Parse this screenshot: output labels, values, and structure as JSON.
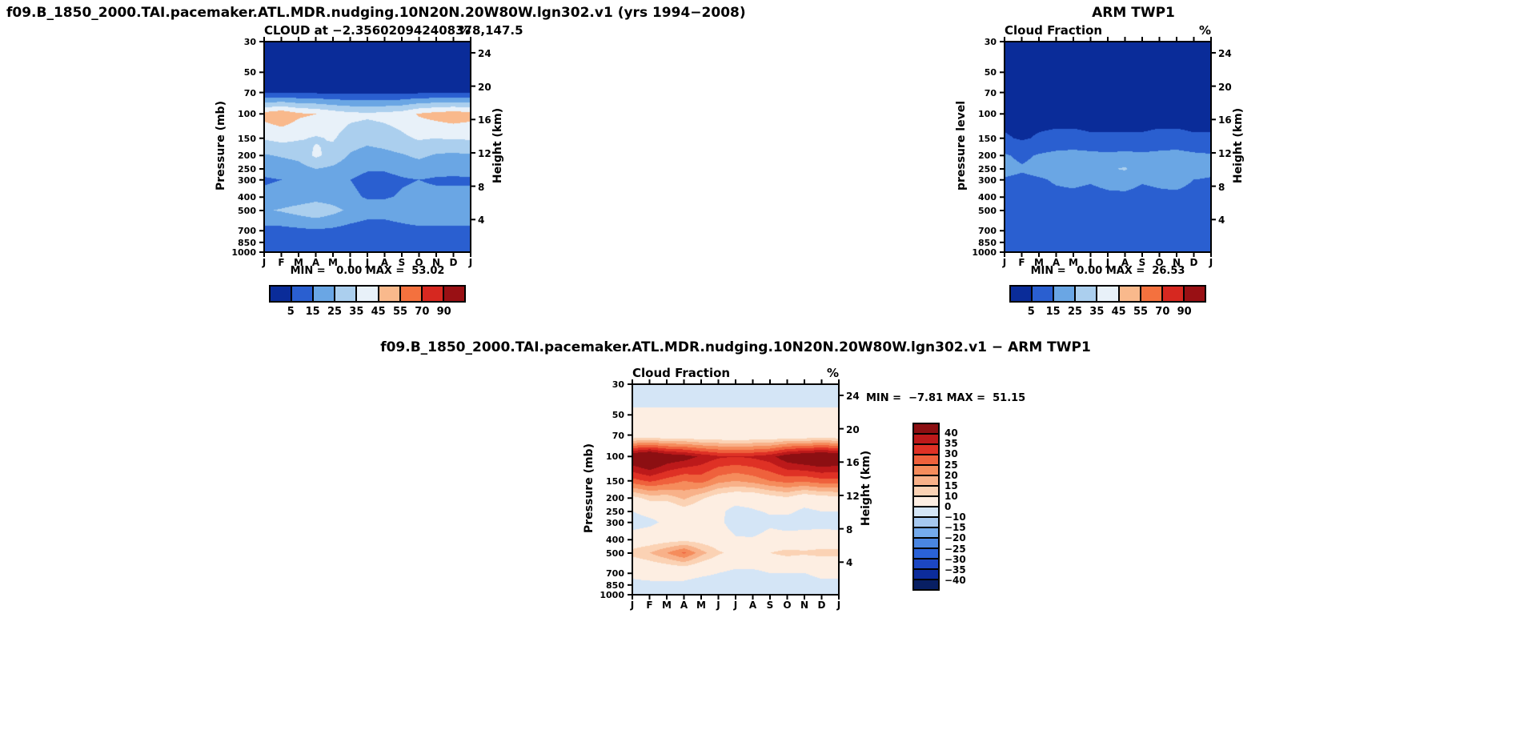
{
  "titles": {
    "model_case": "f09.B_1850_2000.TAI.pacemaker.ATL.MDR.nudging.10N20N.20W80W.lgn302.v1  (yrs 1994−2008)",
    "obs": "ARM TWP1",
    "diff": "f09.B_1850_2000.TAI.pacemaker.ATL.MDR.nudging.10N20N.20W80W.lgn302.v1 − ARM TWP1"
  },
  "axes": {
    "months": [
      "J",
      "F",
      "M",
      "A",
      "M",
      "J",
      "J",
      "A",
      "S",
      "O",
      "N",
      "D",
      "J"
    ],
    "pressure_ticks": [
      30,
      50,
      70,
      100,
      150,
      200,
      250,
      300,
      400,
      500,
      700,
      850,
      1000
    ],
    "height_ticks": [
      4,
      8,
      12,
      16,
      20,
      24
    ]
  },
  "palettes": {
    "cloud": {
      "levels": [
        5,
        15,
        25,
        35,
        45,
        55,
        70,
        90
      ],
      "colors": [
        "#0a2c99",
        "#2a5fd0",
        "#6aa6e4",
        "#abcfee",
        "#e8f1f9",
        "#f9b98c",
        "#f4713e",
        "#d62820",
        "#991014"
      ],
      "labels": [
        "5",
        "15",
        "25",
        "35",
        "45",
        "55",
        "70",
        "90"
      ]
    },
    "diff": {
      "levels": [
        -40,
        -35,
        -30,
        -25,
        -20,
        -15,
        -10,
        0,
        10,
        15,
        20,
        25,
        30,
        35,
        40
      ],
      "colors": [
        "#081f63",
        "#0c2c9c",
        "#1c47c2",
        "#2a62d8",
        "#4a86e2",
        "#74aaec",
        "#a6c8f0",
        "#d4e5f6",
        "#fdeee2",
        "#fbd2b4",
        "#f8b189",
        "#f58c5c",
        "#ef613c",
        "#df3125",
        "#bc191a",
        "#8c0f12"
      ],
      "labels": [
        "40",
        "35",
        "30",
        "25",
        "20",
        "15",
        "10",
        "0",
        "−10",
        "−15",
        "−20",
        "−25",
        "−30",
        "−35",
        "−40"
      ]
    }
  },
  "chart_data": [
    {
      "id": "model",
      "type": "heatmap",
      "title": "CLOUD at −2.356020942408378,147.5",
      "units": "%",
      "ylabel_left": "Pressure (mb)",
      "ylabel_right": "Height (km)",
      "minmax": "MIN =   0.00 MAX =  53.02",
      "min": 0.0,
      "max": 53.02,
      "palette": "cloud",
      "x": [
        "J",
        "F",
        "M",
        "A",
        "M",
        "J",
        "J",
        "A",
        "S",
        "O",
        "N",
        "D",
        "J"
      ],
      "y_mb": [
        30,
        50,
        70,
        100,
        150,
        200,
        250,
        300,
        400,
        500,
        700,
        850,
        1000
      ],
      "values": [
        [
          0.5,
          0.5,
          0.5,
          0.5,
          0.5,
          0.5,
          0.5,
          0.5,
          0.5,
          0.5,
          0.5,
          0.5,
          0.5
        ],
        [
          1,
          1,
          1,
          1,
          1,
          1,
          1,
          1,
          1,
          1,
          1,
          1,
          1
        ],
        [
          4,
          4,
          4,
          4,
          3,
          3,
          3,
          3,
          3,
          4,
          4,
          4,
          4
        ],
        [
          49,
          53,
          47,
          45,
          41,
          38,
          37,
          38,
          40,
          46,
          49,
          51,
          49
        ],
        [
          36,
          38,
          36,
          34,
          36,
          30,
          28,
          30,
          33,
          36,
          35,
          36,
          36
        ],
        [
          24,
          26,
          28,
          37,
          31,
          24,
          21,
          22,
          24,
          27,
          24,
          23,
          24
        ],
        [
          18,
          19,
          21,
          25,
          23,
          19,
          16,
          16,
          18,
          20,
          18,
          17,
          18
        ],
        [
          14,
          15,
          16,
          18,
          17,
          15,
          12,
          12,
          14,
          15,
          14,
          14,
          14
        ],
        [
          17,
          18,
          19,
          21,
          20,
          17,
          14,
          14,
          16,
          17,
          17,
          17,
          17
        ],
        [
          24,
          26,
          29,
          32,
          28,
          23,
          20,
          20,
          22,
          25,
          24,
          24,
          24
        ],
        [
          12,
          12,
          13,
          14,
          13,
          11,
          9,
          9,
          11,
          12,
          12,
          12,
          12
        ],
        [
          9,
          9,
          9,
          10,
          9,
          8,
          7,
          7,
          8,
          9,
          9,
          9,
          9
        ],
        [
          6,
          6,
          6,
          6,
          6,
          6,
          5,
          5,
          6,
          6,
          6,
          6,
          6
        ]
      ]
    },
    {
      "id": "obs",
      "type": "heatmap",
      "title": "Cloud Fraction",
      "units": "%",
      "ylabel_left": "pressure level",
      "ylabel_right": "Height (km)",
      "minmax": "MIN =   0.00 MAX =  26.53",
      "min": 0.0,
      "max": 26.53,
      "palette": "cloud",
      "x": [
        "J",
        "F",
        "M",
        "A",
        "M",
        "J",
        "J",
        "A",
        "S",
        "O",
        "N",
        "D",
        "J"
      ],
      "y_mb": [
        30,
        50,
        70,
        100,
        150,
        200,
        250,
        300,
        400,
        500,
        700,
        850,
        1000
      ],
      "values": [
        [
          0.3,
          0.3,
          0.3,
          0.3,
          0.3,
          0.3,
          0.3,
          0.3,
          0.3,
          0.3,
          0.3,
          0.3,
          0.3
        ],
        [
          0.3,
          0.3,
          0.3,
          0.3,
          0.3,
          0.3,
          0.3,
          0.3,
          0.3,
          0.3,
          0.3,
          0.3,
          0.3
        ],
        [
          0.5,
          0.5,
          0.5,
          0.5,
          0.5,
          0.5,
          0.5,
          0.5,
          0.5,
          0.5,
          0.5,
          0.5,
          0.5
        ],
        [
          2,
          2,
          2,
          2,
          2,
          2,
          2,
          2,
          2,
          2,
          2,
          2,
          2
        ],
        [
          6,
          4,
          6,
          7,
          7,
          6,
          6,
          6,
          6,
          7,
          7,
          6,
          6
        ],
        [
          16,
          13,
          16,
          18,
          19,
          18,
          17,
          18,
          17,
          18,
          19,
          17,
          16
        ],
        [
          18,
          16,
          18,
          20,
          22,
          20,
          24,
          26,
          20,
          21,
          23,
          20,
          18
        ],
        [
          14,
          13,
          14,
          16,
          17,
          16,
          18,
          19,
          16,
          17,
          18,
          15,
          14
        ],
        [
          12,
          11,
          12,
          13,
          13,
          12,
          13,
          13,
          12,
          13,
          13,
          12,
          12
        ],
        [
          12,
          11,
          12,
          13,
          13,
          11,
          12,
          12,
          12,
          13,
          13,
          12,
          12
        ],
        [
          11,
          10,
          11,
          12,
          12,
          10,
          11,
          11,
          11,
          12,
          12,
          11,
          11
        ],
        [
          10,
          10,
          10,
          11,
          11,
          10,
          10,
          10,
          10,
          11,
          11,
          10,
          10
        ],
        [
          8,
          8,
          8,
          8,
          8,
          8,
          8,
          8,
          8,
          8,
          8,
          8,
          8
        ]
      ]
    },
    {
      "id": "diff",
      "type": "heatmap",
      "title": "Cloud Fraction",
      "units": "%",
      "ylabel_left": "Pressure (mb)",
      "ylabel_right": "Height (km)",
      "minmax": "MIN =  −7.81 MAX =  51.15",
      "min": -7.81,
      "max": 51.15,
      "palette": "diff",
      "x": [
        "J",
        "F",
        "M",
        "A",
        "M",
        "J",
        "J",
        "A",
        "S",
        "O",
        "N",
        "D",
        "J"
      ],
      "y_mb": [
        30,
        50,
        70,
        100,
        150,
        200,
        250,
        300,
        400,
        500,
        700,
        850,
        1000
      ],
      "values": [
        [
          -3,
          -3,
          -3,
          -3,
          -3,
          -3,
          -3,
          -3,
          -3,
          -3,
          -3,
          -3,
          -3
        ],
        [
          1,
          1,
          1,
          1,
          1,
          1,
          1,
          1,
          1,
          1,
          1,
          1,
          1
        ],
        [
          4,
          4,
          4,
          4,
          3,
          3,
          3,
          3,
          3,
          4,
          4,
          4,
          4
        ],
        [
          47,
          51,
          45,
          43,
          39,
          36,
          35,
          36,
          38,
          44,
          47,
          49,
          47
        ],
        [
          28,
          31,
          28,
          25,
          27,
          22,
          20,
          22,
          25,
          27,
          26,
          28,
          28
        ],
        [
          8,
          12,
          12,
          16,
          11,
          6,
          4,
          4,
          7,
          9,
          5,
          7,
          8
        ],
        [
          0,
          3,
          3,
          7,
          4,
          2,
          -3,
          -1,
          1,
          2,
          -2,
          0,
          0
        ],
        [
          -4,
          -2,
          2,
          4,
          2,
          2,
          -4,
          -6,
          -2,
          -4,
          -4,
          -3,
          -4
        ],
        [
          5,
          6,
          7,
          8,
          7,
          5,
          1,
          1,
          4,
          4,
          5,
          5,
          5
        ],
        [
          12,
          15,
          20,
          26,
          17,
          11,
          8,
          8,
          10,
          12,
          11,
          12,
          12
        ],
        [
          1,
          2,
          2,
          2,
          1,
          0,
          -2,
          -2,
          0,
          0,
          0,
          1,
          1
        ],
        [
          -1,
          -1,
          -1,
          -1,
          -2,
          -2,
          -3,
          -3,
          -2,
          -7.8,
          -2,
          -1,
          -1
        ],
        [
          -2,
          -2,
          -2,
          -2,
          -2,
          -2,
          -3,
          -3,
          -3,
          -3,
          -2,
          -2,
          -2
        ]
      ]
    }
  ]
}
